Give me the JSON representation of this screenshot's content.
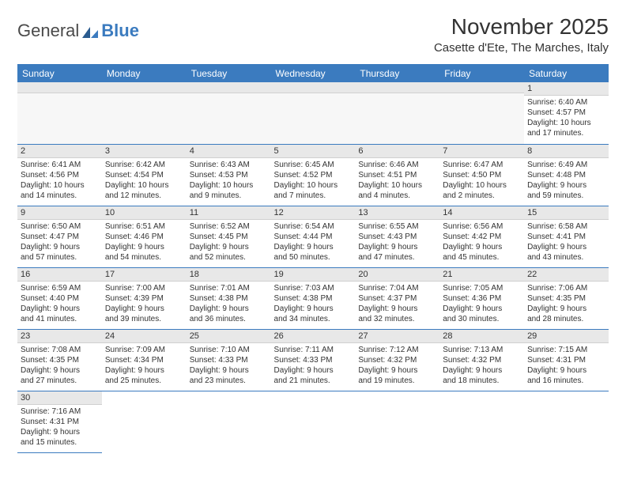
{
  "logo": {
    "text1": "General",
    "text2": "Blue"
  },
  "title": "November 2025",
  "location": "Casette d'Ete, The Marches, Italy",
  "day_headers": [
    "Sunday",
    "Monday",
    "Tuesday",
    "Wednesday",
    "Thursday",
    "Friday",
    "Saturday"
  ],
  "colors": {
    "header_bg": "#3b7bbf",
    "header_text": "#ffffff",
    "daynum_bg": "#e8e8e8",
    "border": "#3b7bbf",
    "text": "#333333"
  },
  "weeks": [
    [
      {
        "num": "",
        "sunrise": "",
        "sunset": "",
        "daylight1": "",
        "daylight2": ""
      },
      {
        "num": "",
        "sunrise": "",
        "sunset": "",
        "daylight1": "",
        "daylight2": ""
      },
      {
        "num": "",
        "sunrise": "",
        "sunset": "",
        "daylight1": "",
        "daylight2": ""
      },
      {
        "num": "",
        "sunrise": "",
        "sunset": "",
        "daylight1": "",
        "daylight2": ""
      },
      {
        "num": "",
        "sunrise": "",
        "sunset": "",
        "daylight1": "",
        "daylight2": ""
      },
      {
        "num": "",
        "sunrise": "",
        "sunset": "",
        "daylight1": "",
        "daylight2": ""
      },
      {
        "num": "1",
        "sunrise": "Sunrise: 6:40 AM",
        "sunset": "Sunset: 4:57 PM",
        "daylight1": "Daylight: 10 hours",
        "daylight2": "and 17 minutes."
      }
    ],
    [
      {
        "num": "2",
        "sunrise": "Sunrise: 6:41 AM",
        "sunset": "Sunset: 4:56 PM",
        "daylight1": "Daylight: 10 hours",
        "daylight2": "and 14 minutes."
      },
      {
        "num": "3",
        "sunrise": "Sunrise: 6:42 AM",
        "sunset": "Sunset: 4:54 PM",
        "daylight1": "Daylight: 10 hours",
        "daylight2": "and 12 minutes."
      },
      {
        "num": "4",
        "sunrise": "Sunrise: 6:43 AM",
        "sunset": "Sunset: 4:53 PM",
        "daylight1": "Daylight: 10 hours",
        "daylight2": "and 9 minutes."
      },
      {
        "num": "5",
        "sunrise": "Sunrise: 6:45 AM",
        "sunset": "Sunset: 4:52 PM",
        "daylight1": "Daylight: 10 hours",
        "daylight2": "and 7 minutes."
      },
      {
        "num": "6",
        "sunrise": "Sunrise: 6:46 AM",
        "sunset": "Sunset: 4:51 PM",
        "daylight1": "Daylight: 10 hours",
        "daylight2": "and 4 minutes."
      },
      {
        "num": "7",
        "sunrise": "Sunrise: 6:47 AM",
        "sunset": "Sunset: 4:50 PM",
        "daylight1": "Daylight: 10 hours",
        "daylight2": "and 2 minutes."
      },
      {
        "num": "8",
        "sunrise": "Sunrise: 6:49 AM",
        "sunset": "Sunset: 4:48 PM",
        "daylight1": "Daylight: 9 hours",
        "daylight2": "and 59 minutes."
      }
    ],
    [
      {
        "num": "9",
        "sunrise": "Sunrise: 6:50 AM",
        "sunset": "Sunset: 4:47 PM",
        "daylight1": "Daylight: 9 hours",
        "daylight2": "and 57 minutes."
      },
      {
        "num": "10",
        "sunrise": "Sunrise: 6:51 AM",
        "sunset": "Sunset: 4:46 PM",
        "daylight1": "Daylight: 9 hours",
        "daylight2": "and 54 minutes."
      },
      {
        "num": "11",
        "sunrise": "Sunrise: 6:52 AM",
        "sunset": "Sunset: 4:45 PM",
        "daylight1": "Daylight: 9 hours",
        "daylight2": "and 52 minutes."
      },
      {
        "num": "12",
        "sunrise": "Sunrise: 6:54 AM",
        "sunset": "Sunset: 4:44 PM",
        "daylight1": "Daylight: 9 hours",
        "daylight2": "and 50 minutes."
      },
      {
        "num": "13",
        "sunrise": "Sunrise: 6:55 AM",
        "sunset": "Sunset: 4:43 PM",
        "daylight1": "Daylight: 9 hours",
        "daylight2": "and 47 minutes."
      },
      {
        "num": "14",
        "sunrise": "Sunrise: 6:56 AM",
        "sunset": "Sunset: 4:42 PM",
        "daylight1": "Daylight: 9 hours",
        "daylight2": "and 45 minutes."
      },
      {
        "num": "15",
        "sunrise": "Sunrise: 6:58 AM",
        "sunset": "Sunset: 4:41 PM",
        "daylight1": "Daylight: 9 hours",
        "daylight2": "and 43 minutes."
      }
    ],
    [
      {
        "num": "16",
        "sunrise": "Sunrise: 6:59 AM",
        "sunset": "Sunset: 4:40 PM",
        "daylight1": "Daylight: 9 hours",
        "daylight2": "and 41 minutes."
      },
      {
        "num": "17",
        "sunrise": "Sunrise: 7:00 AM",
        "sunset": "Sunset: 4:39 PM",
        "daylight1": "Daylight: 9 hours",
        "daylight2": "and 39 minutes."
      },
      {
        "num": "18",
        "sunrise": "Sunrise: 7:01 AM",
        "sunset": "Sunset: 4:38 PM",
        "daylight1": "Daylight: 9 hours",
        "daylight2": "and 36 minutes."
      },
      {
        "num": "19",
        "sunrise": "Sunrise: 7:03 AM",
        "sunset": "Sunset: 4:38 PM",
        "daylight1": "Daylight: 9 hours",
        "daylight2": "and 34 minutes."
      },
      {
        "num": "20",
        "sunrise": "Sunrise: 7:04 AM",
        "sunset": "Sunset: 4:37 PM",
        "daylight1": "Daylight: 9 hours",
        "daylight2": "and 32 minutes."
      },
      {
        "num": "21",
        "sunrise": "Sunrise: 7:05 AM",
        "sunset": "Sunset: 4:36 PM",
        "daylight1": "Daylight: 9 hours",
        "daylight2": "and 30 minutes."
      },
      {
        "num": "22",
        "sunrise": "Sunrise: 7:06 AM",
        "sunset": "Sunset: 4:35 PM",
        "daylight1": "Daylight: 9 hours",
        "daylight2": "and 28 minutes."
      }
    ],
    [
      {
        "num": "23",
        "sunrise": "Sunrise: 7:08 AM",
        "sunset": "Sunset: 4:35 PM",
        "daylight1": "Daylight: 9 hours",
        "daylight2": "and 27 minutes."
      },
      {
        "num": "24",
        "sunrise": "Sunrise: 7:09 AM",
        "sunset": "Sunset: 4:34 PM",
        "daylight1": "Daylight: 9 hours",
        "daylight2": "and 25 minutes."
      },
      {
        "num": "25",
        "sunrise": "Sunrise: 7:10 AM",
        "sunset": "Sunset: 4:33 PM",
        "daylight1": "Daylight: 9 hours",
        "daylight2": "and 23 minutes."
      },
      {
        "num": "26",
        "sunrise": "Sunrise: 7:11 AM",
        "sunset": "Sunset: 4:33 PM",
        "daylight1": "Daylight: 9 hours",
        "daylight2": "and 21 minutes."
      },
      {
        "num": "27",
        "sunrise": "Sunrise: 7:12 AM",
        "sunset": "Sunset: 4:32 PM",
        "daylight1": "Daylight: 9 hours",
        "daylight2": "and 19 minutes."
      },
      {
        "num": "28",
        "sunrise": "Sunrise: 7:13 AM",
        "sunset": "Sunset: 4:32 PM",
        "daylight1": "Daylight: 9 hours",
        "daylight2": "and 18 minutes."
      },
      {
        "num": "29",
        "sunrise": "Sunrise: 7:15 AM",
        "sunset": "Sunset: 4:31 PM",
        "daylight1": "Daylight: 9 hours",
        "daylight2": "and 16 minutes."
      }
    ],
    [
      {
        "num": "30",
        "sunrise": "Sunrise: 7:16 AM",
        "sunset": "Sunset: 4:31 PM",
        "daylight1": "Daylight: 9 hours",
        "daylight2": "and 15 minutes."
      },
      {
        "num": "",
        "sunrise": "",
        "sunset": "",
        "daylight1": "",
        "daylight2": ""
      },
      {
        "num": "",
        "sunrise": "",
        "sunset": "",
        "daylight1": "",
        "daylight2": ""
      },
      {
        "num": "",
        "sunrise": "",
        "sunset": "",
        "daylight1": "",
        "daylight2": ""
      },
      {
        "num": "",
        "sunrise": "",
        "sunset": "",
        "daylight1": "",
        "daylight2": ""
      },
      {
        "num": "",
        "sunrise": "",
        "sunset": "",
        "daylight1": "",
        "daylight2": ""
      },
      {
        "num": "",
        "sunrise": "",
        "sunset": "",
        "daylight1": "",
        "daylight2": ""
      }
    ]
  ]
}
